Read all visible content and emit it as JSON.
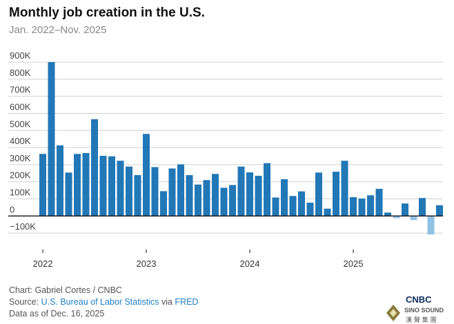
{
  "title": "Monthly job creation in the U.S.",
  "subtitle": "Jan. 2022–Nov. 2025",
  "footer": {
    "credit": "Chart: Gabriel Cortes / CNBC",
    "source_prefix": "Source: ",
    "source_link1": "U.S. Bureau of Labor Statistics",
    "source_via": " via ",
    "source_link2": "FRED",
    "data_date": "Data as of Dec. 16, 2025"
  },
  "logo_text": [
    "CNBC",
    "SINO SOUND",
    "漢聲集團"
  ],
  "colors": {
    "positive": "#2277b7",
    "negative": "#92c1e6",
    "grid": "#d0d0d0",
    "zero": "#111111"
  },
  "chart_data": {
    "type": "bar",
    "title": "Monthly job creation in the U.S.",
    "xlabel": "",
    "ylabel": "",
    "ylim": [
      -100,
      900
    ],
    "yticks": [
      900,
      800,
      700,
      600,
      500,
      400,
      300,
      200,
      100,
      0,
      -100
    ],
    "ytick_labels": [
      "900K",
      "800K",
      "700K",
      "600K",
      "500K",
      "400K",
      "300K",
      "200K",
      "100K",
      "0",
      "−100K"
    ],
    "xtick_labels": [
      "2022",
      "2023",
      "2024",
      "2025"
    ],
    "xtick_index": [
      0,
      12,
      24,
      36
    ],
    "units": "thousands of jobs",
    "grid": true,
    "start": "2022-01",
    "values": [
      363,
      900,
      413,
      254,
      363,
      368,
      566,
      352,
      349,
      323,
      289,
      239,
      480,
      286,
      145,
      278,
      302,
      239,
      184,
      210,
      246,
      165,
      181,
      289,
      255,
      235,
      309,
      108,
      215,
      117,
      144,
      78,
      254,
      43,
      259,
      323,
      110,
      102,
      121,
      159,
      20,
      -13,
      73,
      -24,
      105,
      -108,
      63
    ]
  }
}
